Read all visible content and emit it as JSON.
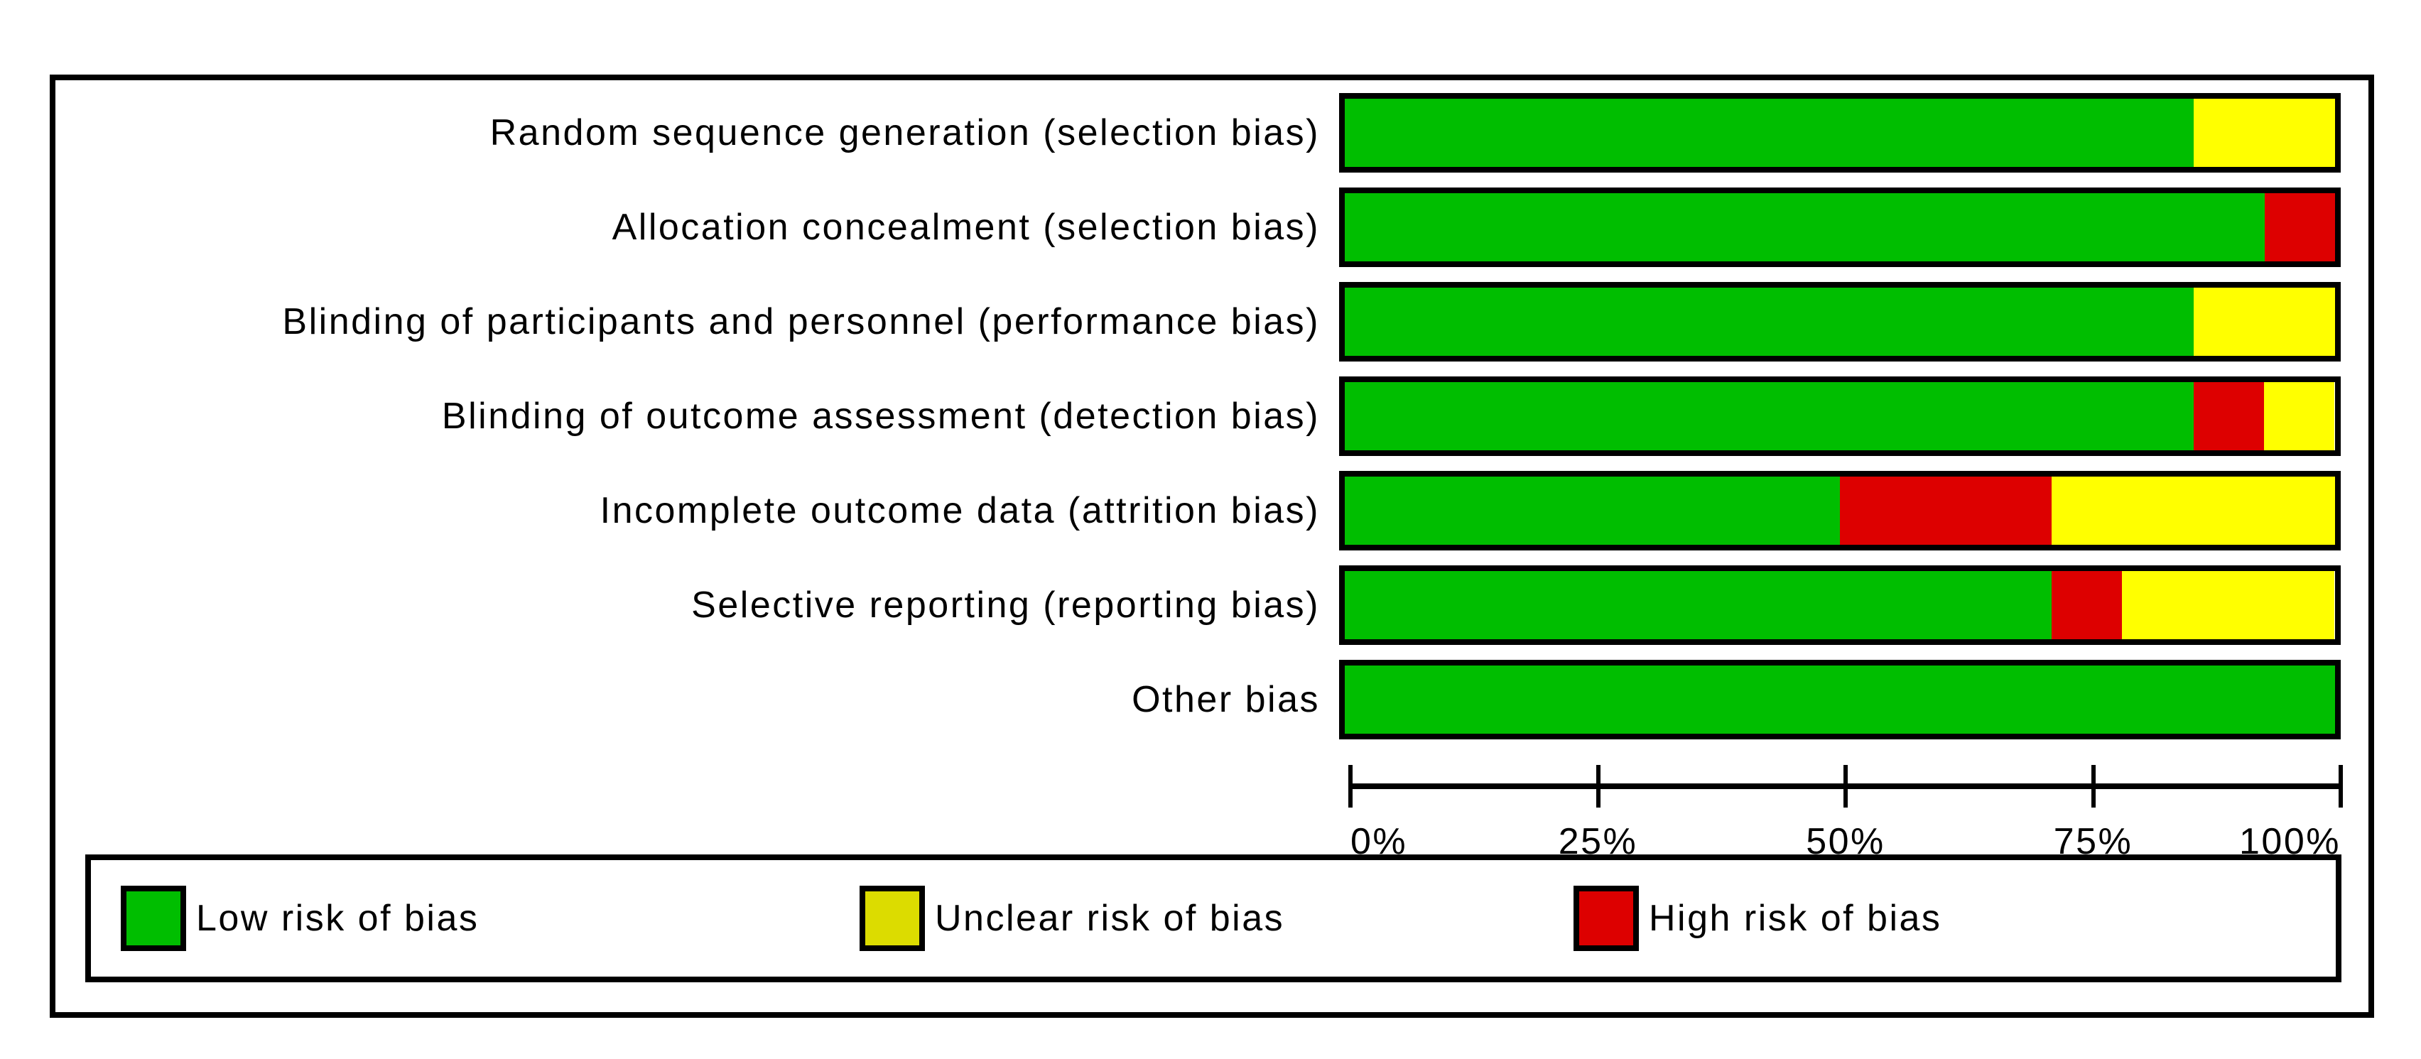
{
  "chart_data": {
    "type": "bar",
    "orientation": "horizontal",
    "stacked": true,
    "categories": [
      "Random sequence generation (selection bias)",
      "Allocation concealment (selection bias)",
      "Blinding of participants and personnel (performance bias)",
      "Blinding of outcome assessment (detection bias)",
      "Incomplete outcome data (attrition bias)",
      "Selective reporting (reporting bias)",
      "Other bias"
    ],
    "series": [
      {
        "name": "Low risk of bias",
        "color": "#00BE00",
        "values": [
          85.7,
          92.9,
          85.7,
          85.7,
          50.0,
          71.4,
          100.0
        ]
      },
      {
        "name": "High risk of bias",
        "color": "#DD0000",
        "values": [
          0,
          7.1,
          0,
          7.1,
          21.4,
          7.1,
          0
        ]
      },
      {
        "name": "Unclear risk of bias",
        "color": "#FFFF00",
        "values": [
          14.3,
          0,
          14.3,
          7.1,
          28.6,
          21.4,
          0
        ]
      }
    ],
    "x_axis": {
      "ticks": [
        "0%",
        "25%",
        "50%",
        "75%",
        "100%"
      ],
      "range": [
        0,
        100
      ],
      "grid": false
    },
    "legend": {
      "position": "bottom",
      "entries": [
        {
          "label": "Low risk of bias",
          "color": "#00BE00"
        },
        {
          "label": "Unclear risk of bias",
          "color": "#DCDC00"
        },
        {
          "label": "High risk of bias",
          "color": "#DD0000"
        }
      ]
    },
    "colors": {
      "low_risk": "#00BE00",
      "unclear_risk": "#FFFF00",
      "high_risk": "#DD0000",
      "border": "#000000",
      "background": "#FFFFFF"
    }
  }
}
